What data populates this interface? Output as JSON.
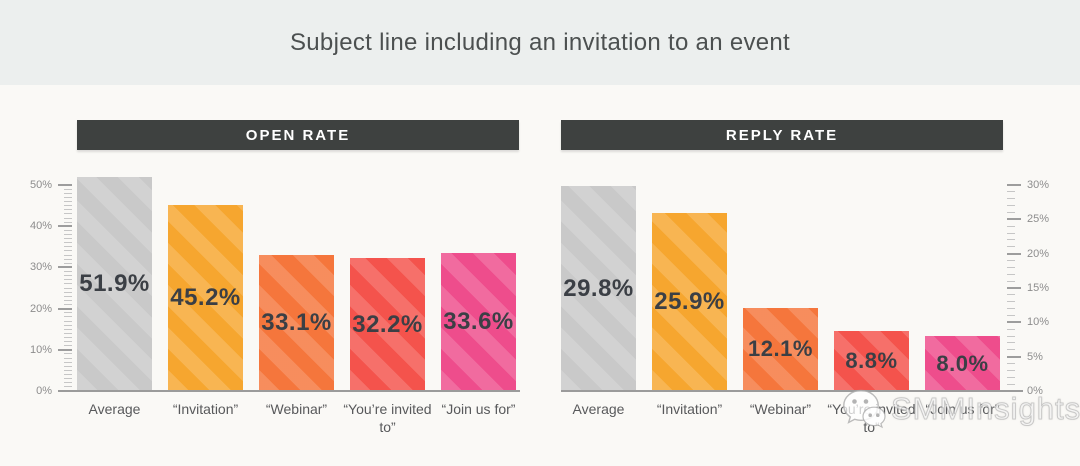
{
  "page": {
    "title": "Subject line including an invitation to an event"
  },
  "watermark": {
    "text": "SMMInsights",
    "icon": "wechat-bubbles-logo-icon"
  },
  "colors": {
    "title_band_bg": "#ecefee",
    "canvas_bg": "#faf9f6",
    "header_bar_bg": "#3e4140",
    "header_text": "#ffffff",
    "value_label_text": "#3b3f45",
    "axis_text": "#8d8d8d",
    "category_text": "#58595b",
    "bar_palette": [
      "#c9c9c9",
      "#f6a62f",
      "#f5763c",
      "#f4534c",
      "#ee4d8c"
    ]
  },
  "chart_data": [
    {
      "type": "bar",
      "title": "OPEN RATE",
      "categories": [
        "Average",
        "“Invitation”",
        "“Webinar”",
        "“You’re invited to”",
        "“Join us for”"
      ],
      "values": [
        51.9,
        45.2,
        33.1,
        32.2,
        33.6
      ],
      "value_labels": [
        "51.9%",
        "45.2%",
        "33.1%",
        "32.2%",
        "33.6%"
      ],
      "bar_colors": [
        "#c9c9c9",
        "#f6a62f",
        "#f5763c",
        "#f4534c",
        "#ee4d8c"
      ],
      "axis": {
        "side": "left",
        "max": 50,
        "major_step": 10,
        "minor_step": 1,
        "tick_labels": [
          "0%",
          "10%",
          "20%",
          "30%",
          "40%",
          "50%"
        ]
      },
      "ylim": [
        0,
        52
      ],
      "grid": false,
      "legend": null
    },
    {
      "type": "bar",
      "title": "REPLY RATE",
      "categories": [
        "Average",
        "“Invitation”",
        "“Webinar”",
        "“You’re invited to”",
        "“Join us for”"
      ],
      "values": [
        29.8,
        25.9,
        12.1,
        8.8,
        8.0
      ],
      "value_labels": [
        "29.8%",
        "25.9%",
        "12.1%",
        "8.8%",
        "8.0%"
      ],
      "bar_colors": [
        "#c9c9c9",
        "#f6a62f",
        "#f5763c",
        "#f4534c",
        "#ee4d8c"
      ],
      "axis": {
        "side": "right",
        "max": 30,
        "major_step": 5,
        "minor_step": 1,
        "tick_labels": [
          "0%",
          "5%",
          "10%",
          "15%",
          "20%",
          "25%",
          "30%"
        ]
      },
      "ylim": [
        0,
        31
      ],
      "grid": false,
      "legend": null
    }
  ]
}
